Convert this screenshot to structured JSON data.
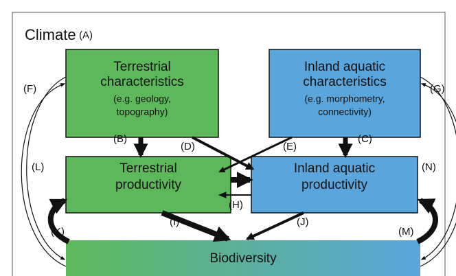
{
  "title": {
    "main": "Climate",
    "label": "(A)"
  },
  "nodes": [
    {
      "lines": [
        "Terrestrial",
        "characteristics"
      ],
      "note": [
        "(e.g. geology,",
        "topography)"
      ]
    },
    {
      "lines": [
        "Inland aquatic",
        "characteristics"
      ],
      "note": [
        "(e.g. morphometry,",
        "connectivity)"
      ]
    },
    {
      "lines": [
        "Terrestrial",
        "productivity"
      ]
    },
    {
      "lines": [
        "Inland aquatic",
        "productivity"
      ]
    },
    {
      "lines": [
        "Biodiversity"
      ]
    }
  ],
  "edges": [
    "(B)",
    "(C)",
    "(D)",
    "(E)",
    "(F)",
    "(G)",
    "(H)",
    "(I)",
    "(J)",
    "(K)",
    "(L)",
    "(M)",
    "(N)"
  ]
}
